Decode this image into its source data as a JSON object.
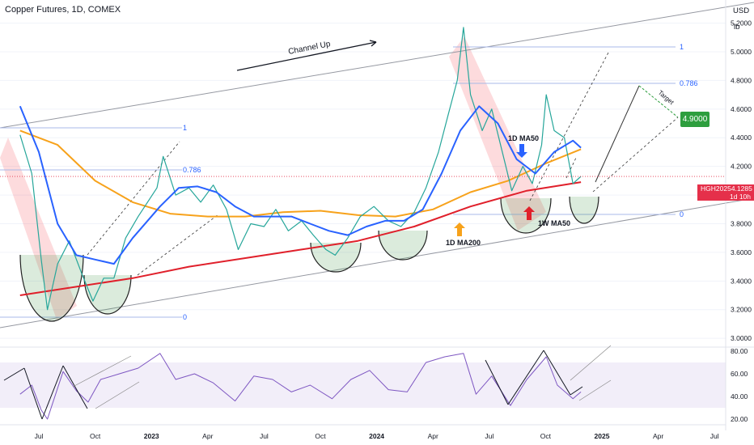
{
  "header": {
    "title": "Copper Futures, 1D, COMEX"
  },
  "axis": {
    "currency": "USD",
    "unit": "lb",
    "price_ticks": [
      "5.2000",
      "5.0000",
      "4.8000",
      "4.6000",
      "4.4000",
      "4.2000",
      "4.0000",
      "3.8000",
      "3.6000",
      "3.4000",
      "3.2000",
      "3.0000"
    ],
    "rsi_ticks": [
      "80.00",
      "60.00",
      "40.00",
      "20.00"
    ],
    "time_ticks": [
      "Jul",
      "Oct",
      "2023",
      "Apr",
      "Jul",
      "Oct",
      "2024",
      "Apr",
      "Jul",
      "Oct",
      "2025",
      "Apr",
      "Jul"
    ]
  },
  "price_badge": {
    "symbol": "HGH2025",
    "price": "4.1285",
    "countdown": "1d 10h"
  },
  "target_label": "4.9000",
  "annotations": {
    "channel": "Channel Up",
    "ma50_1d": "1D MA50",
    "ma200_1d": "1D MA200",
    "ma50_1w": "1W MA50",
    "target": "Target"
  },
  "fib_levels": {
    "left": {
      "top": "1",
      "mid": "0.786",
      "bottom": "0"
    },
    "right": {
      "top": "1",
      "mid": "0.786",
      "bottom": "0"
    }
  },
  "colors": {
    "price_line": "#26a69a",
    "ma50_1d": "#2962ff",
    "ma200_1d": "#f7a21b",
    "ma50_1w": "#e0202b",
    "rsi": "#7e57c2",
    "rsi_ma": "#f7d33a",
    "target_box": "#2e9e3e",
    "badge": "#e5304a"
  },
  "chart_data": {
    "type": "line",
    "title": "Copper Futures, 1D, COMEX",
    "y_unit": "USD/lb",
    "ylim": [
      2.95,
      5.35
    ],
    "x_months_span": [
      "2022-06",
      "2025-08"
    ],
    "series": [
      {
        "name": "Copper Futures",
        "points": [
          [
            "2022-06-01",
            4.42
          ],
          [
            "2022-06-20",
            4.15
          ],
          [
            "2022-07-05",
            3.55
          ],
          [
            "2022-07-15",
            3.2
          ],
          [
            "2022-08-01",
            3.52
          ],
          [
            "2022-08-20",
            3.68
          ],
          [
            "2022-09-10",
            3.45
          ],
          [
            "2022-09-28",
            3.26
          ],
          [
            "2022-10-15",
            3.42
          ],
          [
            "2022-11-01",
            3.42
          ],
          [
            "2022-11-20",
            3.7
          ],
          [
            "2022-12-10",
            3.85
          ],
          [
            "2023-01-10",
            4.05
          ],
          [
            "2023-01-20",
            4.27
          ],
          [
            "2023-02-10",
            4.0
          ],
          [
            "2023-03-01",
            4.05
          ],
          [
            "2023-03-20",
            3.95
          ],
          [
            "2023-04-10",
            4.07
          ],
          [
            "2023-05-01",
            3.9
          ],
          [
            "2023-05-20",
            3.62
          ],
          [
            "2023-06-10",
            3.8
          ],
          [
            "2023-07-01",
            3.78
          ],
          [
            "2023-07-20",
            3.9
          ],
          [
            "2023-08-10",
            3.75
          ],
          [
            "2023-09-01",
            3.82
          ],
          [
            "2023-09-20",
            3.72
          ],
          [
            "2023-10-10",
            3.62
          ],
          [
            "2023-10-25",
            3.58
          ],
          [
            "2023-11-15",
            3.7
          ],
          [
            "2023-12-05",
            3.85
          ],
          [
            "2023-12-27",
            3.92
          ],
          [
            "2024-01-20",
            3.82
          ],
          [
            "2024-02-10",
            3.78
          ],
          [
            "2024-03-01",
            3.88
          ],
          [
            "2024-03-20",
            4.05
          ],
          [
            "2024-04-10",
            4.3
          ],
          [
            "2024-04-25",
            4.55
          ],
          [
            "2024-05-10",
            4.8
          ],
          [
            "2024-05-20",
            5.17
          ],
          [
            "2024-06-01",
            4.7
          ],
          [
            "2024-06-20",
            4.45
          ],
          [
            "2024-07-05",
            4.6
          ],
          [
            "2024-07-25",
            4.25
          ],
          [
            "2024-08-07",
            4.03
          ],
          [
            "2024-08-25",
            4.2
          ],
          [
            "2024-09-10",
            4.08
          ],
          [
            "2024-09-25",
            4.35
          ],
          [
            "2024-10-02",
            4.7
          ],
          [
            "2024-10-15",
            4.45
          ],
          [
            "2024-11-01",
            4.4
          ],
          [
            "2024-11-15",
            4.08
          ],
          [
            "2024-11-28",
            4.13
          ]
        ]
      },
      {
        "name": "1D MA50",
        "points": [
          [
            "2022-06-01",
            4.62
          ],
          [
            "2022-07-01",
            4.3
          ],
          [
            "2022-08-01",
            3.8
          ],
          [
            "2022-09-01",
            3.58
          ],
          [
            "2022-10-01",
            3.55
          ],
          [
            "2022-11-01",
            3.52
          ],
          [
            "2022-12-01",
            3.7
          ],
          [
            "2023-01-15",
            3.92
          ],
          [
            "2023-02-15",
            4.05
          ],
          [
            "2023-03-15",
            4.06
          ],
          [
            "2023-04-15",
            4.02
          ],
          [
            "2023-05-15",
            3.92
          ],
          [
            "2023-06-15",
            3.85
          ],
          [
            "2023-07-15",
            3.85
          ],
          [
            "2023-08-15",
            3.85
          ],
          [
            "2023-09-15",
            3.8
          ],
          [
            "2023-10-15",
            3.75
          ],
          [
            "2023-11-15",
            3.72
          ],
          [
            "2023-12-15",
            3.78
          ],
          [
            "2024-01-15",
            3.82
          ],
          [
            "2024-02-15",
            3.82
          ],
          [
            "2024-03-15",
            3.9
          ],
          [
            "2024-04-15",
            4.15
          ],
          [
            "2024-05-15",
            4.45
          ],
          [
            "2024-06-15",
            4.62
          ],
          [
            "2024-07-15",
            4.5
          ],
          [
            "2024-08-15",
            4.25
          ],
          [
            "2024-09-15",
            4.15
          ],
          [
            "2024-10-15",
            4.3
          ],
          [
            "2024-11-15",
            4.38
          ],
          [
            "2024-11-28",
            4.33
          ]
        ]
      },
      {
        "name": "1D MA200",
        "points": [
          [
            "2022-06-01",
            4.45
          ],
          [
            "2022-08-01",
            4.35
          ],
          [
            "2022-10-01",
            4.1
          ],
          [
            "2022-12-01",
            3.95
          ],
          [
            "2023-02-01",
            3.87
          ],
          [
            "2023-04-01",
            3.85
          ],
          [
            "2023-06-01",
            3.85
          ],
          [
            "2023-08-01",
            3.88
          ],
          [
            "2023-10-01",
            3.89
          ],
          [
            "2023-12-01",
            3.86
          ],
          [
            "2024-02-01",
            3.85
          ],
          [
            "2024-04-01",
            3.9
          ],
          [
            "2024-06-01",
            4.02
          ],
          [
            "2024-08-01",
            4.1
          ],
          [
            "2024-10-01",
            4.22
          ],
          [
            "2024-11-28",
            4.32
          ]
        ]
      },
      {
        "name": "1W MA50",
        "points": [
          [
            "2022-06-01",
            3.3
          ],
          [
            "2022-09-01",
            3.36
          ],
          [
            "2022-12-01",
            3.42
          ],
          [
            "2023-03-01",
            3.5
          ],
          [
            "2023-06-01",
            3.56
          ],
          [
            "2023-09-01",
            3.62
          ],
          [
            "2023-12-01",
            3.68
          ],
          [
            "2024-03-01",
            3.78
          ],
          [
            "2024-06-01",
            3.92
          ],
          [
            "2024-09-01",
            4.03
          ],
          [
            "2024-11-28",
            4.09
          ]
        ]
      }
    ],
    "rsi": {
      "ylim": [
        15,
        85
      ],
      "band": [
        30,
        70
      ],
      "points": [
        [
          "2022-06-01",
          42
        ],
        [
          "2022-06-20",
          50
        ],
        [
          "2022-07-05",
          28
        ],
        [
          "2022-07-15",
          20
        ],
        [
          "2022-08-10",
          62
        ],
        [
          "2022-09-01",
          45
        ],
        [
          "2022-09-20",
          35
        ],
        [
          "2022-10-10",
          55
        ],
        [
          "2022-11-10",
          60
        ],
        [
          "2022-12-10",
          65
        ],
        [
          "2023-01-15",
          78
        ],
        [
          "2023-02-10",
          55
        ],
        [
          "2023-03-10",
          60
        ],
        [
          "2023-04-10",
          52
        ],
        [
          "2023-05-15",
          36
        ],
        [
          "2023-06-15",
          58
        ],
        [
          "2023-07-15",
          55
        ],
        [
          "2023-08-15",
          44
        ],
        [
          "2023-09-15",
          50
        ],
        [
          "2023-10-20",
          38
        ],
        [
          "2023-11-20",
          55
        ],
        [
          "2023-12-20",
          63
        ],
        [
          "2024-01-20",
          46
        ],
        [
          "2024-02-20",
          44
        ],
        [
          "2024-03-20",
          70
        ],
        [
          "2024-04-20",
          75
        ],
        [
          "2024-05-20",
          78
        ],
        [
          "2024-06-10",
          42
        ],
        [
          "2024-07-05",
          58
        ],
        [
          "2024-08-05",
          32
        ],
        [
          "2024-09-01",
          55
        ],
        [
          "2024-10-02",
          75
        ],
        [
          "2024-10-20",
          50
        ],
        [
          "2024-11-15",
          38
        ],
        [
          "2024-11-28",
          44
        ]
      ]
    }
  }
}
